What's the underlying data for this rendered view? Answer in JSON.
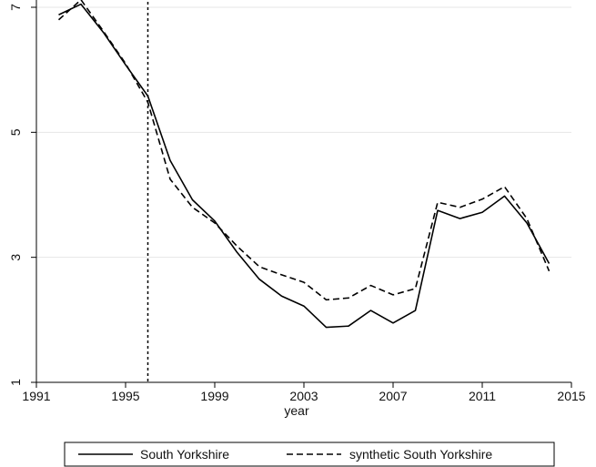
{
  "chart_data": {
    "type": "line",
    "title": "",
    "xlabel": "year",
    "ylabel": "",
    "xlim": [
      1991,
      2015
    ],
    "ylim": [
      1,
      7
    ],
    "xticks": [
      1991,
      1995,
      1999,
      2003,
      2007,
      2011,
      2015
    ],
    "xtick_labels": [
      "1991",
      "1995",
      "1999",
      "2003",
      "2007",
      "2011",
      "2015"
    ],
    "yticks": [
      1,
      3,
      5,
      7
    ],
    "ytick_labels": [
      "1",
      "3",
      "5",
      "7"
    ],
    "grid": "horizontal",
    "legend": {
      "placement": "bottom",
      "entries": [
        "South Yorkshire",
        "synthetic South Yorkshire"
      ]
    },
    "vline": 1996,
    "x": [
      1992,
      1993,
      1994,
      1995,
      1996,
      1997,
      1998,
      1999,
      2000,
      2001,
      2002,
      2003,
      2004,
      2005,
      2006,
      2007,
      2008,
      2009,
      2010,
      2011,
      2012,
      2013,
      2014
    ],
    "series": [
      {
        "name": "South Yorkshire",
        "style": "solid",
        "color": "#000000",
        "values": [
          6.88,
          7.05,
          6.6,
          6.08,
          5.58,
          4.55,
          3.92,
          3.58,
          3.08,
          2.65,
          2.38,
          2.22,
          1.88,
          1.9,
          2.15,
          1.95,
          2.15,
          3.75,
          3.62,
          3.72,
          3.98,
          3.55,
          2.9
        ]
      },
      {
        "name": "synthetic South Yorkshire",
        "style": "dashed",
        "color": "#000000",
        "values": [
          6.8,
          7.12,
          6.62,
          6.1,
          5.48,
          4.25,
          3.8,
          3.55,
          3.18,
          2.85,
          2.72,
          2.6,
          2.32,
          2.35,
          2.55,
          2.4,
          2.5,
          3.88,
          3.8,
          3.93,
          4.13,
          3.62,
          2.78
        ]
      }
    ]
  }
}
